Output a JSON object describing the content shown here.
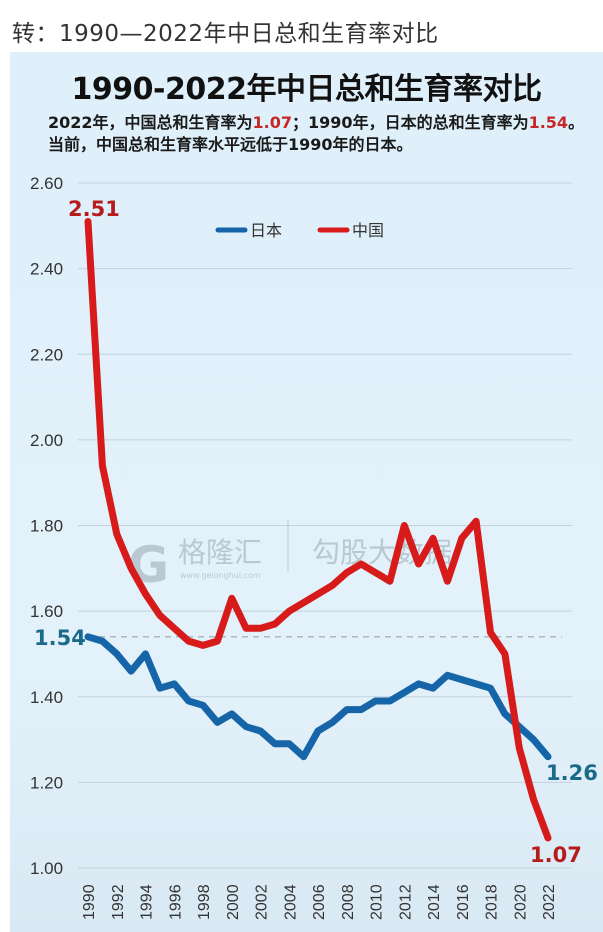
{
  "repost_header": "转：1990—2022年中日总和生育率对比",
  "panel": {
    "title": "1990-2022年中日总和生育率对比",
    "subtitle_parts": [
      "2022年，中国总和生育率为",
      "1.07",
      "；1990年，日本的总和生育率为",
      "1.54",
      "。当前，中国总和生育率水平远低于1990年的日本。"
    ],
    "watermarks": [
      "格隆汇",
      "www.gelonghui.com",
      "勾股大数据"
    ]
  },
  "colors": {
    "japan": "#1565a8",
    "china": "#d71a1a",
    "japan_label": "#1a6a8a",
    "china_label": "#b71c1c",
    "background": "#e0f0fa"
  },
  "chart_data": {
    "type": "line",
    "title": "1990-2022年中日总和生育率对比",
    "xlabel": "",
    "ylabel": "",
    "ylim": [
      1.0,
      2.6
    ],
    "yticks": [
      "2.60",
      "2.40",
      "2.20",
      "2.00",
      "1.80",
      "1.60",
      "1.40",
      "1.20",
      "1.00"
    ],
    "xticks": [
      "1990",
      "1992",
      "1994",
      "1996",
      "1998",
      "2000",
      "2002",
      "2004",
      "2006",
      "2008",
      "2010",
      "2012",
      "2014",
      "2016",
      "2018",
      "2020",
      "2022"
    ],
    "grid": true,
    "legend_position": "top-center",
    "x": [
      1990,
      1991,
      1992,
      1993,
      1994,
      1995,
      1996,
      1997,
      1998,
      1999,
      2000,
      2001,
      2002,
      2003,
      2004,
      2005,
      2006,
      2007,
      2008,
      2009,
      2010,
      2011,
      2012,
      2013,
      2014,
      2015,
      2016,
      2017,
      2018,
      2019,
      2020,
      2021,
      2022
    ],
    "series": [
      {
        "name": "日本",
        "values": [
          1.54,
          1.53,
          1.5,
          1.46,
          1.5,
          1.42,
          1.43,
          1.39,
          1.38,
          1.34,
          1.36,
          1.33,
          1.32,
          1.29,
          1.29,
          1.26,
          1.32,
          1.34,
          1.37,
          1.37,
          1.39,
          1.39,
          1.41,
          1.43,
          1.42,
          1.45,
          1.44,
          1.43,
          1.42,
          1.36,
          1.33,
          1.3,
          1.26
        ]
      },
      {
        "name": "中国",
        "values": [
          2.51,
          1.94,
          1.78,
          1.7,
          1.64,
          1.59,
          1.56,
          1.53,
          1.52,
          1.53,
          1.63,
          1.56,
          1.56,
          1.57,
          1.6,
          1.62,
          1.64,
          1.66,
          1.69,
          1.71,
          1.69,
          1.67,
          1.8,
          1.71,
          1.77,
          1.67,
          1.77,
          1.81,
          1.55,
          1.5,
          1.28,
          1.16,
          1.07
        ]
      }
    ],
    "annotations": [
      {
        "text": "2.51",
        "series": "中国",
        "x": 1990
      },
      {
        "text": "1.54",
        "series": "日本",
        "x": 1990,
        "note": "dashed reference line at 1.54"
      },
      {
        "text": "1.26",
        "series": "日本",
        "x": 2022
      },
      {
        "text": "1.07",
        "series": "中国",
        "x": 2022
      }
    ],
    "reference_line": {
      "y": 1.54,
      "style": "dashed"
    }
  }
}
